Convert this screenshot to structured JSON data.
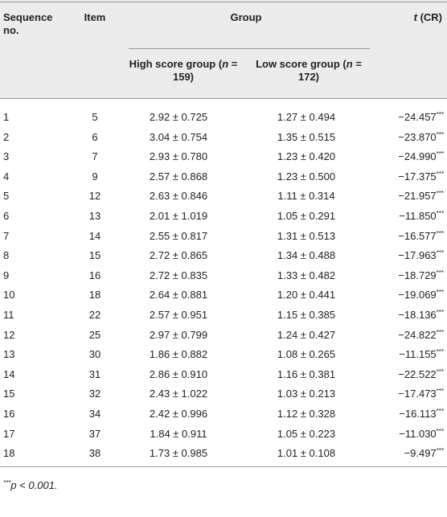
{
  "header": {
    "seq": "Sequence no.",
    "item": "Item",
    "group": "Group",
    "high": [
      "High score group (",
      "n",
      " = 159)"
    ],
    "low": [
      "Low score group (",
      "n",
      " = 172)"
    ],
    "t_col": [
      "t",
      " (CR)"
    ]
  },
  "rows": [
    [
      "1",
      "5",
      "2.92 ± 0.725",
      "1.27 ± 0.494",
      "−24.457",
      "***"
    ],
    [
      "2",
      "6",
      "3.04 ± 0.754",
      "1.35 ± 0.515",
      "−23.870",
      "***"
    ],
    [
      "3",
      "7",
      "2.93 ± 0.780",
      "1.23 ± 0.420",
      "−24.990",
      "***"
    ],
    [
      "4",
      "9",
      "2.57 ± 0.868",
      "1.23 ± 0.500",
      "−17.375",
      "***"
    ],
    [
      "5",
      "12",
      "2.63 ± 0.846",
      "1.11 ± 0.314",
      "−21.957",
      "***"
    ],
    [
      "6",
      "13",
      "2.01 ± 1.019",
      "1.05 ± 0.291",
      "−11.850",
      "***"
    ],
    [
      "7",
      "14",
      "2.55 ± 0.817",
      "1.31 ± 0.513",
      "−16.577",
      "***"
    ],
    [
      "8",
      "15",
      "2.72 ± 0.865",
      "1.34 ± 0.488",
      "−17.963",
      "***"
    ],
    [
      "9",
      "16",
      "2.72 ± 0.835",
      "1.33 ± 0.482",
      "−18.729",
      "***"
    ],
    [
      "10",
      "18",
      "2.64 ± 0.881",
      "1.20 ± 0.441",
      "−19.069",
      "***"
    ],
    [
      "11",
      "22",
      "2.57 ± 0.951",
      "1.15 ± 0.385",
      "−18.136",
      "***"
    ],
    [
      "12",
      "25",
      "2.97 ± 0.799",
      "1.24 ± 0.427",
      "−24.822",
      "***"
    ],
    [
      "13",
      "30",
      "1.86 ± 0.882",
      "1.08 ± 0.265",
      "−11.155",
      "***"
    ],
    [
      "14",
      "31",
      "2.86 ± 0.910",
      "1.16 ± 0.381",
      "−22.522",
      "***"
    ],
    [
      "15",
      "32",
      "2.43 ± 1.022",
      "1.03 ± 0.213",
      "−17.473",
      "***"
    ],
    [
      "16",
      "34",
      "2.42 ± 0.996",
      "1.12 ± 0.328",
      "−16.113",
      "***"
    ],
    [
      "17",
      "37",
      "1.84 ± 0.911",
      "1.05 ± 0.223",
      "−11.030",
      "***"
    ],
    [
      "18",
      "38",
      "1.73 ± 0.985",
      "1.01 ± 0.108",
      "−9.497",
      "***"
    ]
  ],
  "footnote": [
    "***",
    "p < 0.001."
  ]
}
